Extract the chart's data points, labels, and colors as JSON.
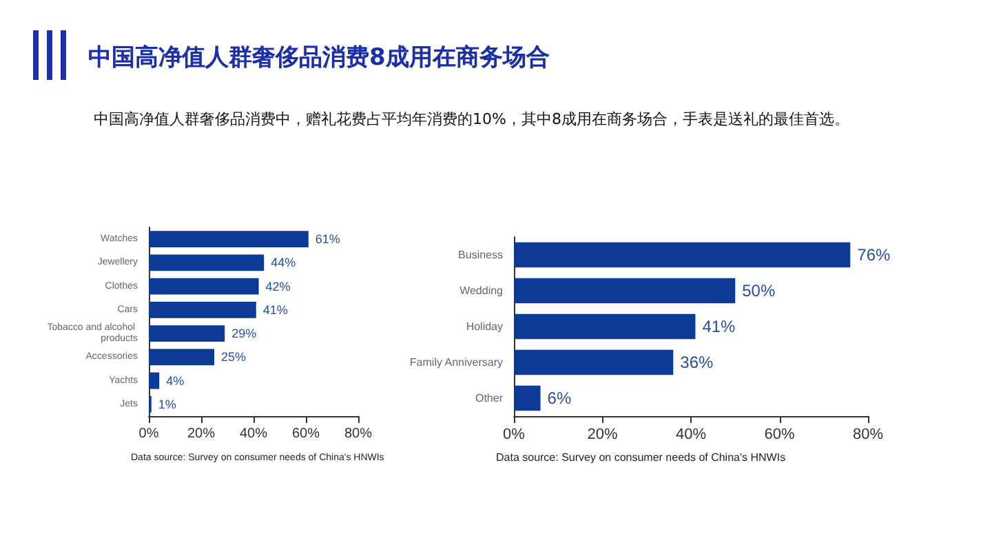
{
  "chart_data": [
    {
      "type": "bar",
      "orientation": "horizontal",
      "title": "中国高净值人群奢侈品消费8成用在商务场合",
      "subtitle": "中国高净值人群奢侈品消费中，赠礼花费占平均年消费的10%，其中8成用在商务场合，手表是送礼的最佳首选。",
      "categories": [
        "Watches",
        "Jewellery",
        "Clothes",
        "Cars",
        "Tobacco and alcohol products",
        "Accessories",
        "Yachts",
        "Jets"
      ],
      "values": [
        61,
        44,
        42,
        41,
        29,
        25,
        4,
        1
      ],
      "color": "#0d3a94",
      "value_labels": [
        "61%",
        "44%",
        "42%",
        "41%",
        "29%",
        "25%",
        "4%",
        "1%"
      ],
      "xlim": [
        0,
        80
      ],
      "xticks": [
        {
          "value": 0,
          "label": "0%"
        },
        {
          "value": 20,
          "label": "20%"
        },
        {
          "value": 40,
          "label": "40%"
        },
        {
          "value": 60,
          "label": "60%"
        },
        {
          "value": 80,
          "label": "80%"
        }
      ],
      "grid": false,
      "annotations": [
        "Data source: Survey on consumer needs of China's HNWIs"
      ]
    },
    {
      "type": "bar",
      "orientation": "horizontal",
      "categories": [
        "Business",
        "Wedding",
        "Holiday",
        "Family Anniversary",
        "Other"
      ],
      "values": [
        76,
        50,
        41,
        36,
        6
      ],
      "color": "#0d3a94",
      "value_labels": [
        "76%",
        "50%",
        "41%",
        "36%",
        "6%"
      ],
      "xlim": [
        0,
        80
      ],
      "xticks": [
        {
          "value": 0,
          "label": "0%"
        },
        {
          "value": 20,
          "label": "20%"
        },
        {
          "value": 40,
          "label": "40%"
        },
        {
          "value": 60,
          "label": "60%"
        },
        {
          "value": 80,
          "label": "80%"
        }
      ],
      "grid": false,
      "annotations": [
        "Data source: Survey on consumer needs of China's HNWIs"
      ]
    }
  ]
}
